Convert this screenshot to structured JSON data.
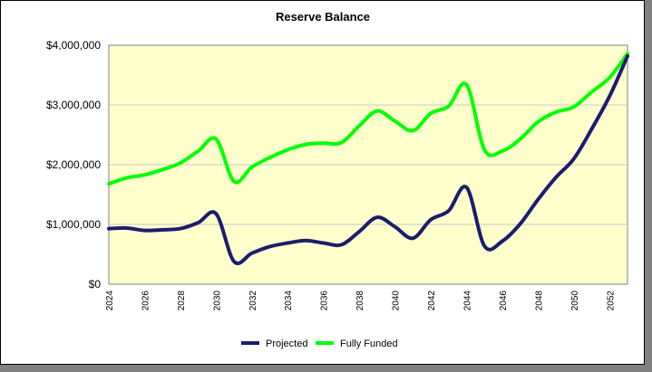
{
  "chart_data": {
    "type": "line",
    "title": "Reserve Balance",
    "xlabel": "",
    "ylabel": "",
    "x": [
      2024,
      2025,
      2026,
      2027,
      2028,
      2029,
      2030,
      2031,
      2032,
      2033,
      2034,
      2035,
      2036,
      2037,
      2038,
      2039,
      2040,
      2041,
      2042,
      2043,
      2044,
      2045,
      2046,
      2047,
      2048,
      2049,
      2050,
      2051,
      2052,
      2053
    ],
    "x_tick_labels": [
      "2024",
      "2026",
      "2028",
      "2030",
      "2032",
      "2034",
      "2036",
      "2038",
      "2040",
      "2042",
      "2044",
      "2046",
      "2048",
      "2050",
      "2052"
    ],
    "y_tick_labels": [
      "$0",
      "$1,000,000",
      "$2,000,000",
      "$3,000,000",
      "$4,000,000"
    ],
    "y_ticks": [
      0,
      1000000,
      2000000,
      3000000,
      4000000
    ],
    "xlim": [
      2024,
      2053
    ],
    "ylim": [
      0,
      4000000
    ],
    "grid": true,
    "legend_position": "bottom",
    "plot_background": "#ffffcc",
    "series": [
      {
        "name": "Projected",
        "color": "#1c1c6e",
        "values": [
          930000,
          940000,
          900000,
          910000,
          930000,
          1030000,
          1180000,
          380000,
          520000,
          630000,
          690000,
          730000,
          690000,
          660000,
          880000,
          1120000,
          960000,
          770000,
          1080000,
          1230000,
          1620000,
          640000,
          720000,
          1010000,
          1420000,
          1790000,
          2100000,
          2600000,
          3150000,
          3820000
        ]
      },
      {
        "name": "Fully Funded",
        "color": "#00ff00",
        "values": [
          1680000,
          1780000,
          1830000,
          1920000,
          2030000,
          2230000,
          2430000,
          1720000,
          1960000,
          2120000,
          2250000,
          2340000,
          2360000,
          2370000,
          2650000,
          2900000,
          2730000,
          2570000,
          2860000,
          2980000,
          3340000,
          2250000,
          2230000,
          2430000,
          2720000,
          2880000,
          2970000,
          3220000,
          3460000,
          3860000
        ]
      }
    ]
  }
}
